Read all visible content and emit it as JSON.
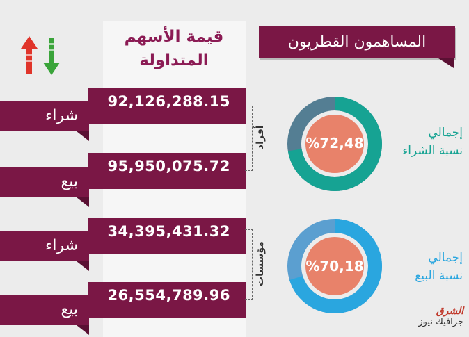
{
  "title": "المساهمون القطريون",
  "column_header": {
    "line1": "قيمة الأسهم",
    "line2": "المتداولة"
  },
  "rows": [
    {
      "label": "شراء",
      "value": "92,126,288.15"
    },
    {
      "label": "بيع",
      "value": "95,950,075.72"
    },
    {
      "label": "شراء",
      "value": "34,395,431.32"
    },
    {
      "label": "بيع",
      "value": "26,554,789.96"
    }
  ],
  "groups": {
    "individuals": "أفراد",
    "institutions": "مؤسسات"
  },
  "donuts": [
    {
      "percent_label": "%72,48",
      "percent": 72.48,
      "desc_line1": "إجمالي",
      "desc_line2": "نسبة الشراء",
      "ring_color": "#16a393",
      "rest_color": "#547e93",
      "center_color": "#e8826a"
    },
    {
      "percent_label": "%70,18",
      "percent": 70.18,
      "desc_line1": "إجمالي",
      "desc_line2": "نسبة البيع",
      "ring_color": "#2aa6df",
      "rest_color": "#5b9fd0",
      "center_color": "#e8826a"
    }
  ],
  "logo": {
    "line1": "الشرق",
    "line2": "جرافيك نيوز"
  },
  "colors": {
    "maroon": "#7a1745",
    "up_arrow": "#e0342a",
    "down_arrow": "#3aa43a"
  }
}
